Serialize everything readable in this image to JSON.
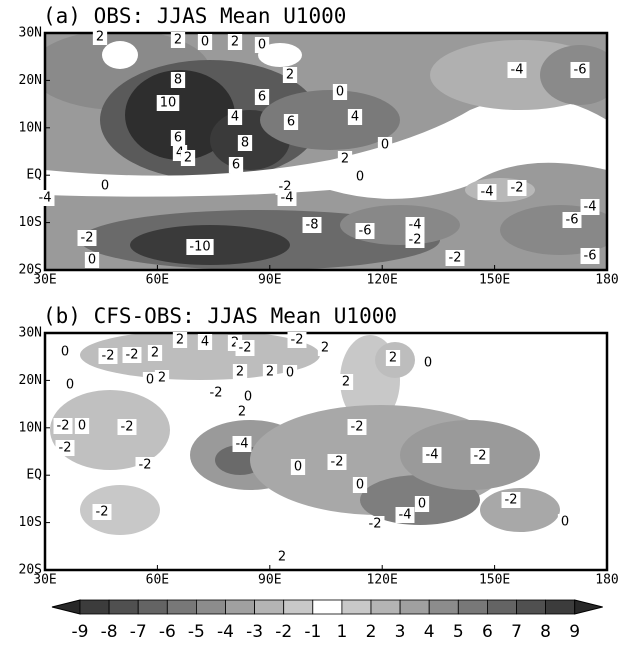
{
  "panels": [
    {
      "title": "(a) OBS: JJAS Mean U1000",
      "xticks": [
        "30E",
        "60E",
        "90E",
        "120E",
        "150E",
        "180"
      ],
      "yticks": [
        "30N",
        "20N",
        "10N",
        "EQ",
        "10S",
        "20S"
      ],
      "contour_labels": [
        "2",
        "2",
        "0",
        "2",
        "0",
        "2",
        "8",
        "6",
        "10",
        "4",
        "6",
        "4",
        "0",
        "8",
        "6",
        "4",
        "2",
        "6",
        "2",
        "0",
        "0",
        "-2",
        "-4",
        "-4",
        "-8",
        "-6",
        "-4",
        "-2",
        "-10",
        "-2",
        "0",
        "-2",
        "-4",
        "-6",
        "0",
        "-4",
        "-2",
        "-4",
        "-6",
        "-6"
      ]
    },
    {
      "title": "(b) CFS-OBS: JJAS Mean U1000",
      "xticks": [
        "30E",
        "60E",
        "90E",
        "120E",
        "150E",
        "180"
      ],
      "yticks": [
        "30N",
        "20N",
        "10N",
        "EQ",
        "10S",
        "20S"
      ],
      "contour_labels": [
        "0",
        "-2",
        "-2",
        "2",
        "2",
        "4",
        "2",
        "-2",
        "-2",
        "2",
        "2",
        "0",
        "0",
        "0",
        "2",
        "-2",
        "2",
        "2",
        "0",
        "2",
        "2",
        "0",
        "-2",
        "0",
        "-2",
        "-2",
        "-2",
        "-2",
        "-4",
        "0",
        "-2",
        "0",
        "-4",
        "-2",
        "0",
        "-2",
        "-2",
        "-2",
        "-4",
        "0",
        "2"
      ]
    }
  ],
  "colorbar": {
    "labels": [
      -9,
      -8,
      -7,
      -6,
      -5,
      -4,
      -3,
      -2,
      -1,
      1,
      2,
      3,
      4,
      5,
      6,
      7,
      8,
      9
    ]
  }
}
